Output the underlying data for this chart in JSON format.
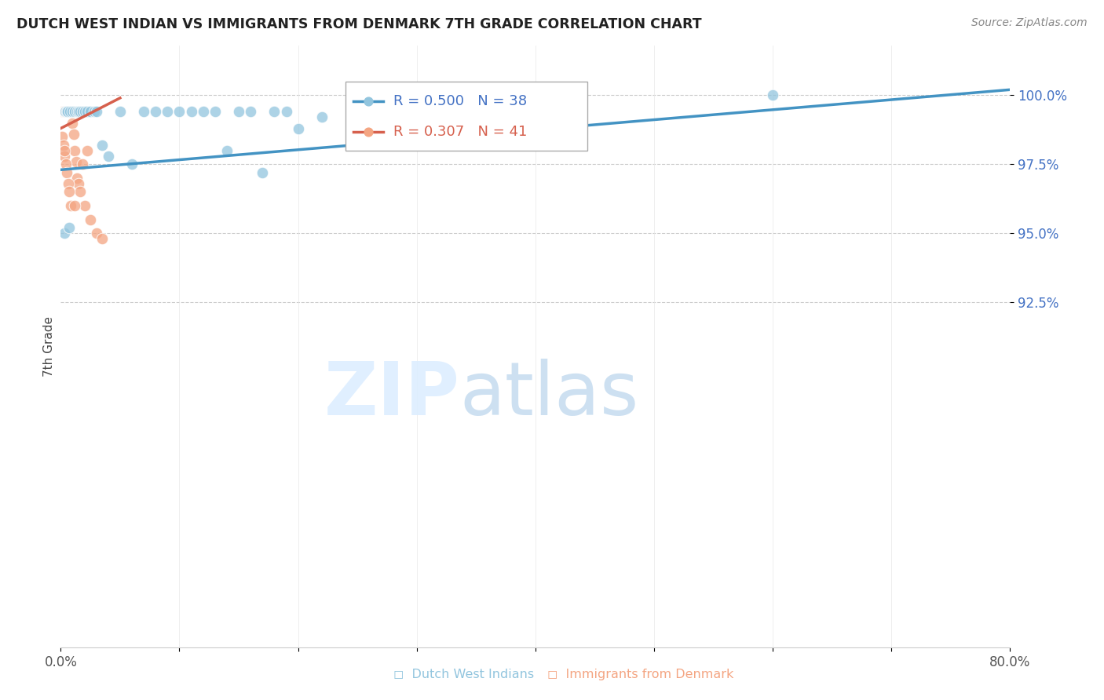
{
  "title": "DUTCH WEST INDIAN VS IMMIGRANTS FROM DENMARK 7TH GRADE CORRELATION CHART",
  "source": "Source: ZipAtlas.com",
  "ylabel": "7th Grade",
  "xlim": [
    0.0,
    80.0
  ],
  "ylim": [
    80.0,
    101.8
  ],
  "blue_color": "#92c5de",
  "pink_color": "#f4a582",
  "blue_line_color": "#4393c3",
  "pink_line_color": "#d6604d",
  "legend_blue_R": "R = 0.500",
  "legend_blue_N": "N = 38",
  "legend_pink_R": "R = 0.307",
  "legend_pink_N": "N = 41",
  "yticks": [
    92.5,
    95.0,
    97.5,
    100.0
  ],
  "ytick_labels": [
    "92.5%",
    "95.0%",
    "97.5%",
    "100.0%"
  ],
  "blue_scatter_x": [
    0.3,
    0.4,
    0.5,
    0.6,
    0.8,
    1.0,
    1.2,
    1.4,
    1.5,
    1.6,
    1.8,
    2.0,
    2.2,
    2.5,
    2.8,
    3.0,
    3.5,
    4.0,
    5.0,
    6.0,
    7.0,
    8.0,
    9.0,
    10.0,
    11.0,
    12.0,
    13.0,
    14.0,
    15.0,
    16.0,
    17.0,
    18.0,
    19.0,
    20.0,
    22.0,
    25.0,
    60.0,
    0.7
  ],
  "blue_scatter_y": [
    95.0,
    99.4,
    99.4,
    99.4,
    99.4,
    99.4,
    99.4,
    99.4,
    99.4,
    99.4,
    99.4,
    99.4,
    99.4,
    99.4,
    99.4,
    99.4,
    98.2,
    97.8,
    99.4,
    97.5,
    99.4,
    99.4,
    99.4,
    99.4,
    99.4,
    99.4,
    99.4,
    98.0,
    99.4,
    99.4,
    97.2,
    99.4,
    99.4,
    98.8,
    99.2,
    99.4,
    100.0,
    95.2
  ],
  "pink_scatter_x": [
    0.1,
    0.15,
    0.2,
    0.25,
    0.3,
    0.35,
    0.4,
    0.45,
    0.5,
    0.55,
    0.6,
    0.65,
    0.7,
    0.75,
    0.8,
    0.85,
    0.9,
    0.95,
    1.0,
    1.1,
    1.2,
    1.3,
    1.4,
    1.5,
    1.6,
    1.8,
    2.0,
    2.5,
    3.0,
    3.5,
    0.12,
    0.22,
    0.32,
    0.42,
    0.52,
    0.62,
    0.72,
    0.82,
    1.15,
    2.2,
    0.28
  ],
  "pink_scatter_y": [
    99.4,
    99.4,
    99.4,
    99.4,
    99.4,
    99.4,
    99.4,
    99.4,
    99.4,
    99.4,
    99.4,
    99.4,
    99.4,
    99.4,
    99.4,
    99.4,
    99.4,
    99.4,
    99.0,
    98.6,
    98.0,
    97.6,
    97.0,
    96.8,
    96.5,
    97.5,
    96.0,
    95.5,
    95.0,
    94.8,
    98.5,
    98.2,
    97.8,
    97.5,
    97.2,
    96.8,
    96.5,
    96.0,
    96.0,
    98.0,
    98.0
  ],
  "blue_line_x0": 0.0,
  "blue_line_y0": 97.4,
  "blue_line_x1": 80.0,
  "blue_line_y1": 100.2,
  "pink_line_x0": 0.0,
  "pink_line_y0": 99.2,
  "pink_line_x1": 5.0,
  "pink_line_y1": 99.8
}
